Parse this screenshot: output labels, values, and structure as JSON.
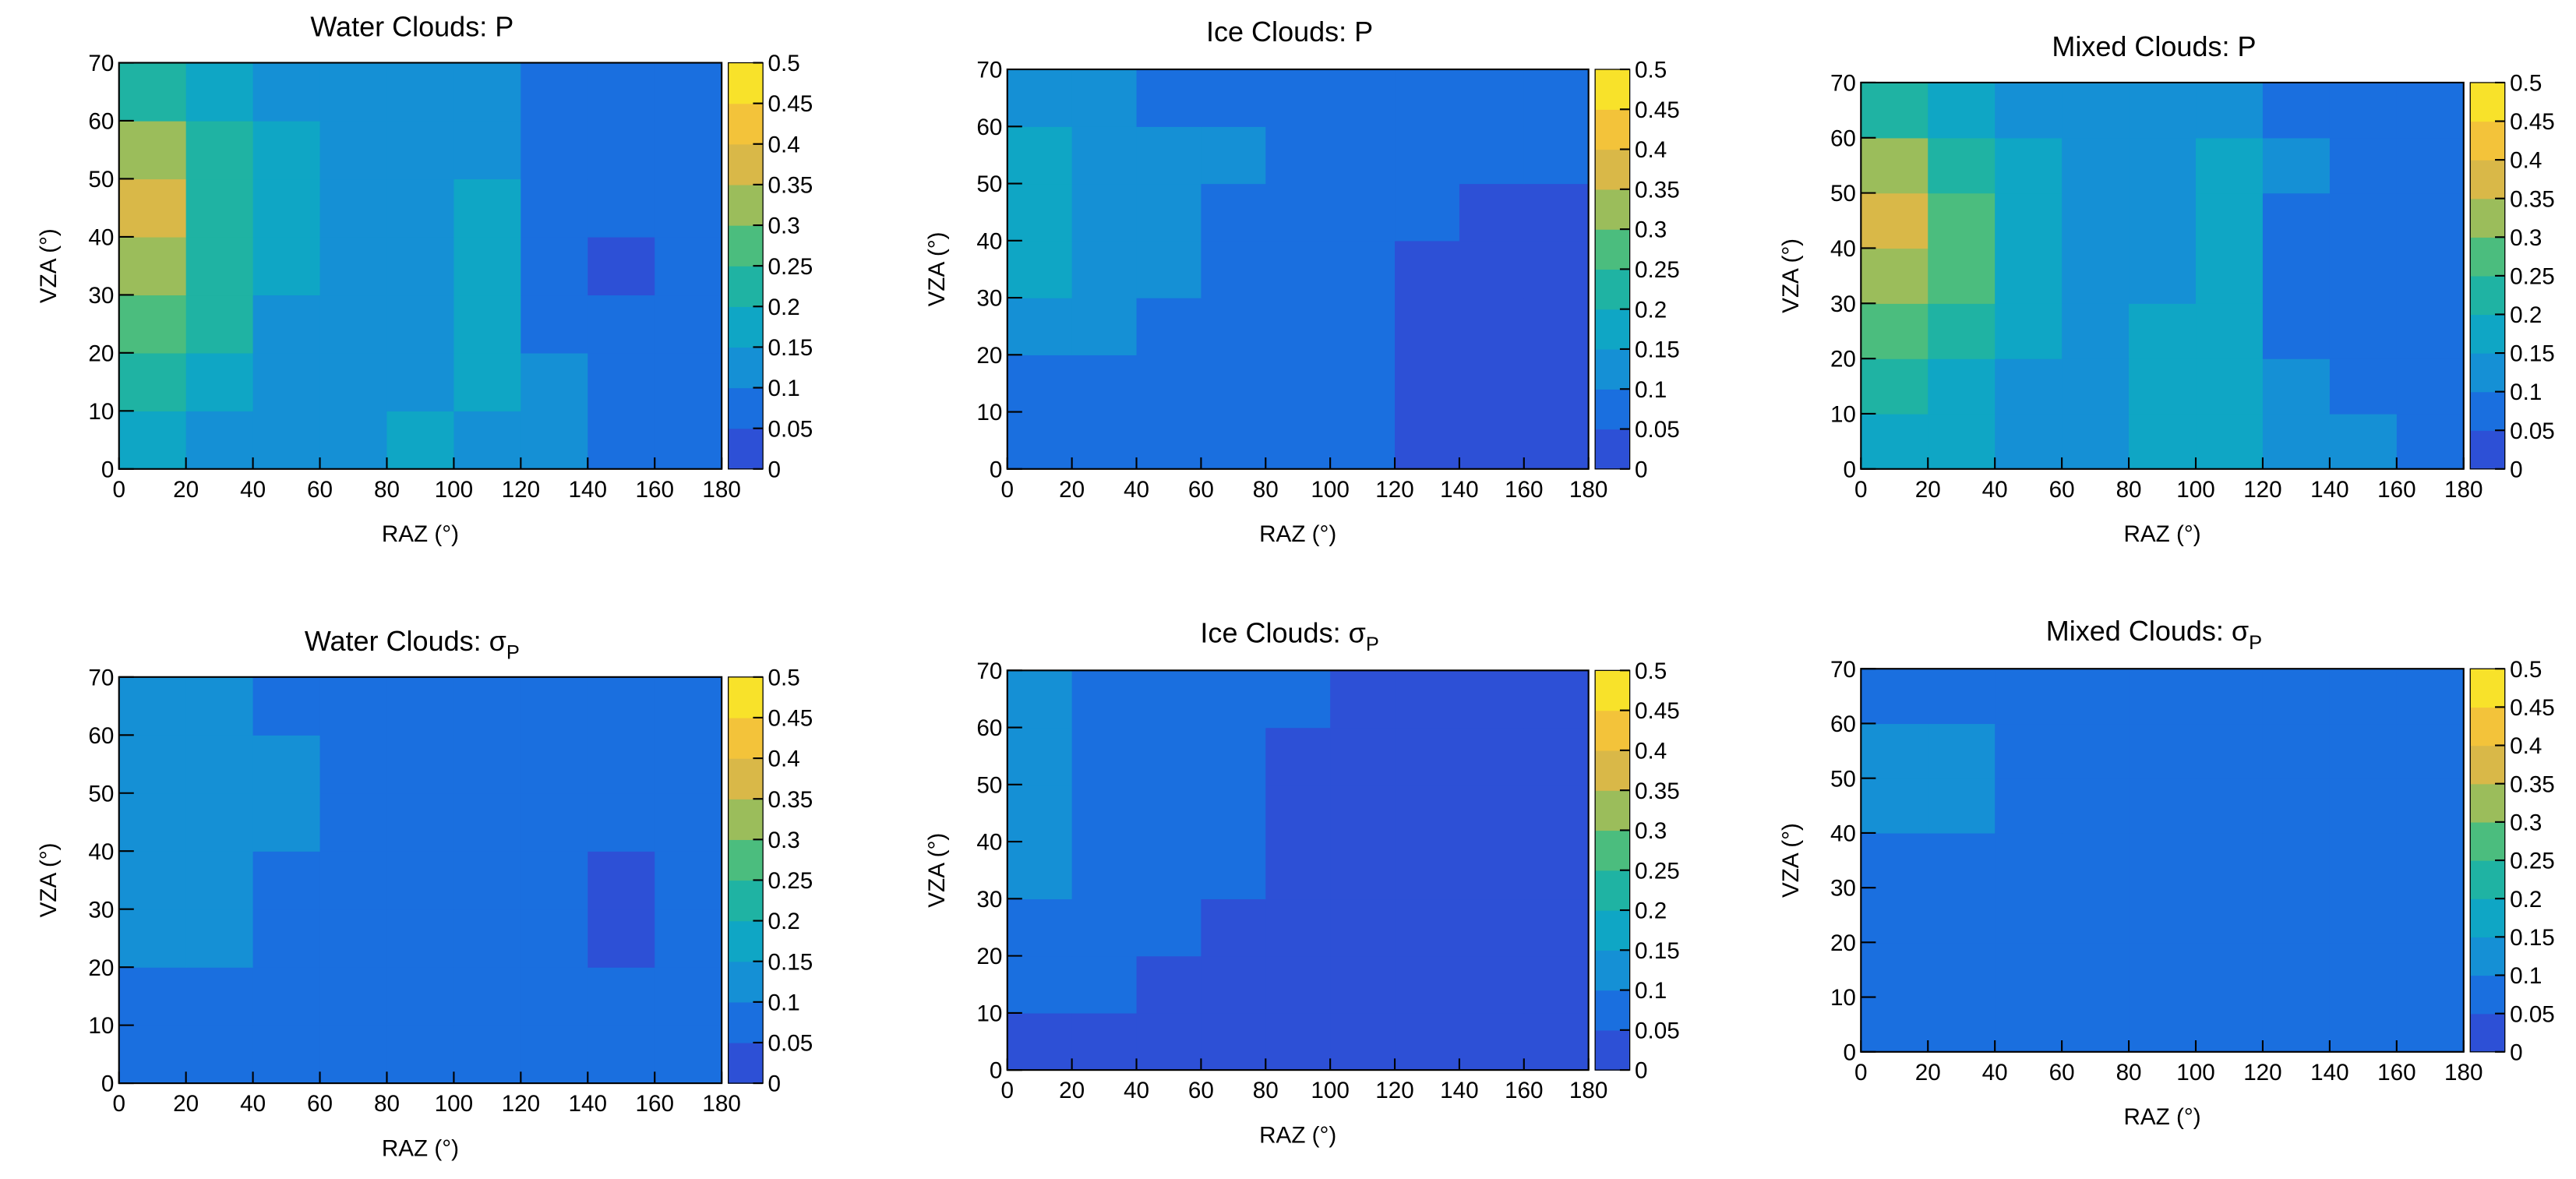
{
  "chart_data": [
    {
      "type": "heatmap",
      "title": "Water Clouds: P",
      "xlabel": "RAZ (°)",
      "ylabel": "VZA (°)",
      "xbins": [
        0,
        20,
        40,
        60,
        80,
        100,
        120,
        140,
        160,
        180
      ],
      "ybins": [
        0,
        10,
        20,
        30,
        40,
        50,
        60,
        70
      ],
      "values": [
        [
          0.15,
          0.13,
          0.13,
          0.13,
          0.15,
          0.14,
          0.12,
          0.08,
          0.08
        ],
        [
          0.2,
          0.16,
          0.13,
          0.12,
          0.14,
          0.15,
          0.1,
          0.06,
          0.07
        ],
        [
          0.27,
          0.2,
          0.14,
          0.12,
          0.14,
          0.16,
          0.07,
          0.05,
          0.06
        ],
        [
          0.33,
          0.23,
          0.15,
          0.12,
          0.13,
          0.16,
          0.06,
          0.04,
          0.06
        ],
        [
          0.36,
          0.24,
          0.16,
          0.12,
          0.12,
          0.16,
          0.07,
          0.05,
          0.07
        ],
        [
          0.3,
          0.2,
          0.15,
          0.12,
          0.11,
          0.14,
          0.09,
          0.08,
          0.08
        ],
        [
          0.2,
          0.15,
          0.13,
          0.11,
          0.1,
          0.1,
          0.09,
          0.08,
          0.08
        ]
      ],
      "xlim": [
        0,
        180
      ],
      "ylim": [
        0,
        70
      ],
      "xticks": [
        0,
        20,
        40,
        60,
        80,
        100,
        120,
        140,
        160,
        180
      ],
      "yticks": [
        0,
        10,
        20,
        30,
        40,
        50,
        60,
        70
      ],
      "colorbar_lim": [
        0,
        0.5
      ],
      "colorbar_ticks": [
        0,
        0.05,
        0.1,
        0.15,
        0.2,
        0.25,
        0.3,
        0.35,
        0.4,
        0.45,
        0.5
      ],
      "colormap": [
        "#2d50d6",
        "#1a6fdf",
        "#1590d5",
        "#0fa6c5",
        "#1fb3a3",
        "#4bbd7e",
        "#9bbd5b",
        "#d9b848",
        "#f3c33a",
        "#f8e22a"
      ]
    },
    {
      "type": "heatmap",
      "title": "Ice Clouds: P",
      "xlabel": "RAZ (°)",
      "ylabel": "VZA (°)",
      "xbins": [
        0,
        20,
        40,
        60,
        80,
        100,
        120,
        140,
        160,
        180
      ],
      "ybins": [
        0,
        10,
        20,
        30,
        40,
        50,
        60,
        70
      ],
      "values": [
        [
          0.08,
          0.08,
          0.08,
          0.08,
          0.08,
          0.07,
          0.04,
          0.04,
          0.04
        ],
        [
          0.09,
          0.08,
          0.08,
          0.08,
          0.08,
          0.06,
          0.04,
          0.04,
          0.04
        ],
        [
          0.12,
          0.11,
          0.09,
          0.08,
          0.08,
          0.05,
          0.04,
          0.04,
          0.04
        ],
        [
          0.15,
          0.13,
          0.11,
          0.09,
          0.08,
          0.06,
          0.04,
          0.04,
          0.04
        ],
        [
          0.16,
          0.14,
          0.12,
          0.09,
          0.08,
          0.07,
          0.05,
          0.04,
          0.04
        ],
        [
          0.16,
          0.14,
          0.12,
          0.1,
          0.08,
          0.07,
          0.06,
          0.05,
          0.05
        ],
        [
          0.12,
          0.11,
          0.09,
          0.08,
          0.08,
          0.07,
          0.06,
          0.05,
          0.05
        ]
      ],
      "xlim": [
        0,
        180
      ],
      "ylim": [
        0,
        70
      ],
      "xticks": [
        0,
        20,
        40,
        60,
        80,
        100,
        120,
        140,
        160,
        180
      ],
      "yticks": [
        0,
        10,
        20,
        30,
        40,
        50,
        60,
        70
      ],
      "colorbar_lim": [
        0,
        0.5
      ],
      "colorbar_ticks": [
        0,
        0.05,
        0.1,
        0.15,
        0.2,
        0.25,
        0.3,
        0.35,
        0.4,
        0.45,
        0.5
      ],
      "colormap": [
        "#2d50d6",
        "#1a6fdf",
        "#1590d5",
        "#0fa6c5",
        "#1fb3a3",
        "#4bbd7e",
        "#9bbd5b",
        "#d9b848",
        "#f3c33a",
        "#f8e22a"
      ]
    },
    {
      "type": "heatmap",
      "title": "Mixed Clouds: P",
      "xlabel": "RAZ (°)",
      "ylabel": "VZA (°)",
      "xbins": [
        0,
        20,
        40,
        60,
        80,
        100,
        120,
        140,
        160,
        180
      ],
      "ybins": [
        0,
        10,
        20,
        30,
        40,
        50,
        60,
        70
      ],
      "values": [
        [
          0.17,
          0.15,
          0.14,
          0.14,
          0.16,
          0.15,
          0.12,
          0.1,
          0.09
        ],
        [
          0.22,
          0.17,
          0.14,
          0.13,
          0.17,
          0.15,
          0.1,
          0.07,
          0.08
        ],
        [
          0.28,
          0.21,
          0.15,
          0.13,
          0.16,
          0.17,
          0.08,
          0.06,
          0.07
        ],
        [
          0.34,
          0.25,
          0.16,
          0.13,
          0.14,
          0.17,
          0.07,
          0.05,
          0.07
        ],
        [
          0.38,
          0.27,
          0.17,
          0.13,
          0.13,
          0.17,
          0.08,
          0.06,
          0.08
        ],
        [
          0.32,
          0.22,
          0.15,
          0.12,
          0.12,
          0.15,
          0.1,
          0.08,
          0.09
        ],
        [
          0.2,
          0.16,
          0.13,
          0.11,
          0.1,
          0.1,
          0.09,
          0.08,
          0.09
        ]
      ],
      "xlim": [
        0,
        180
      ],
      "ylim": [
        0,
        70
      ],
      "xticks": [
        0,
        20,
        40,
        60,
        80,
        100,
        120,
        140,
        160,
        180
      ],
      "yticks": [
        0,
        10,
        20,
        30,
        40,
        50,
        60,
        70
      ],
      "colorbar_lim": [
        0,
        0.5
      ],
      "colorbar_ticks": [
        0,
        0.05,
        0.1,
        0.15,
        0.2,
        0.25,
        0.3,
        0.35,
        0.4,
        0.45,
        0.5
      ],
      "colormap": [
        "#2d50d6",
        "#1a6fdf",
        "#1590d5",
        "#0fa6c5",
        "#1fb3a3",
        "#4bbd7e",
        "#9bbd5b",
        "#d9b848",
        "#f3c33a",
        "#f8e22a"
      ]
    },
    {
      "type": "heatmap",
      "title": "Water Clouds: σ",
      "title_subscript": "P",
      "xlabel": "RAZ (°)",
      "ylabel": "VZA (°)",
      "xbins": [
        0,
        20,
        40,
        60,
        80,
        100,
        120,
        140,
        160,
        180
      ],
      "ybins": [
        0,
        10,
        20,
        30,
        40,
        50,
        60,
        70
      ],
      "values": [
        [
          0.08,
          0.08,
          0.08,
          0.08,
          0.08,
          0.08,
          0.07,
          0.06,
          0.06
        ],
        [
          0.09,
          0.08,
          0.08,
          0.08,
          0.08,
          0.08,
          0.06,
          0.05,
          0.05
        ],
        [
          0.11,
          0.1,
          0.09,
          0.08,
          0.07,
          0.08,
          0.06,
          0.04,
          0.05
        ],
        [
          0.12,
          0.11,
          0.09,
          0.08,
          0.06,
          0.08,
          0.06,
          0.04,
          0.05
        ],
        [
          0.13,
          0.12,
          0.1,
          0.08,
          0.07,
          0.08,
          0.07,
          0.05,
          0.06
        ],
        [
          0.13,
          0.12,
          0.1,
          0.09,
          0.08,
          0.08,
          0.08,
          0.06,
          0.07
        ],
        [
          0.12,
          0.11,
          0.09,
          0.08,
          0.08,
          0.08,
          0.08,
          0.07,
          0.07
        ]
      ],
      "xlim": [
        0,
        180
      ],
      "ylim": [
        0,
        70
      ],
      "xticks": [
        0,
        20,
        40,
        60,
        80,
        100,
        120,
        140,
        160,
        180
      ],
      "yticks": [
        0,
        10,
        20,
        30,
        40,
        50,
        60,
        70
      ],
      "colorbar_lim": [
        0,
        0.5
      ],
      "colorbar_ticks": [
        0,
        0.05,
        0.1,
        0.15,
        0.2,
        0.25,
        0.3,
        0.35,
        0.4,
        0.45,
        0.5
      ],
      "colormap": [
        "#2d50d6",
        "#1a6fdf",
        "#1590d5",
        "#0fa6c5",
        "#1fb3a3",
        "#4bbd7e",
        "#9bbd5b",
        "#d9b848",
        "#f3c33a",
        "#f8e22a"
      ]
    },
    {
      "type": "heatmap",
      "title": "Ice Clouds: σ",
      "title_subscript": "P",
      "xlabel": "RAZ (°)",
      "ylabel": "VZA (°)",
      "xbins": [
        0,
        20,
        40,
        60,
        80,
        100,
        120,
        140,
        160,
        180
      ],
      "ybins": [
        0,
        10,
        20,
        30,
        40,
        50,
        60,
        70
      ],
      "values": [
        [
          0.04,
          0.04,
          0.04,
          0.04,
          0.04,
          0.04,
          0.04,
          0.04,
          0.04
        ],
        [
          0.06,
          0.05,
          0.04,
          0.04,
          0.04,
          0.04,
          0.04,
          0.04,
          0.04
        ],
        [
          0.08,
          0.07,
          0.06,
          0.04,
          0.04,
          0.04,
          0.04,
          0.04,
          0.04
        ],
        [
          0.1,
          0.08,
          0.07,
          0.05,
          0.04,
          0.04,
          0.04,
          0.04,
          0.04
        ],
        [
          0.13,
          0.09,
          0.08,
          0.05,
          0.04,
          0.04,
          0.04,
          0.04,
          0.04
        ],
        [
          0.12,
          0.09,
          0.08,
          0.06,
          0.04,
          0.04,
          0.04,
          0.04,
          0.04
        ],
        [
          0.1,
          0.08,
          0.07,
          0.06,
          0.05,
          0.04,
          0.04,
          0.04,
          0.04
        ]
      ],
      "xlim": [
        0,
        180
      ],
      "ylim": [
        0,
        70
      ],
      "xticks": [
        0,
        20,
        40,
        60,
        80,
        100,
        120,
        140,
        160,
        180
      ],
      "yticks": [
        0,
        10,
        20,
        30,
        40,
        50,
        60,
        70
      ],
      "colorbar_lim": [
        0,
        0.5
      ],
      "colorbar_ticks": [
        0,
        0.05,
        0.1,
        0.15,
        0.2,
        0.25,
        0.3,
        0.35,
        0.4,
        0.45,
        0.5
      ],
      "colormap": [
        "#2d50d6",
        "#1a6fdf",
        "#1590d5",
        "#0fa6c5",
        "#1fb3a3",
        "#4bbd7e",
        "#9bbd5b",
        "#d9b848",
        "#f3c33a",
        "#f8e22a"
      ]
    },
    {
      "type": "heatmap",
      "title": "Mixed Clouds: σ",
      "title_subscript": "P",
      "xlabel": "RAZ (°)",
      "ylabel": "VZA (°)",
      "xbins": [
        0,
        20,
        40,
        60,
        80,
        100,
        120,
        140,
        160,
        180
      ],
      "ybins": [
        0,
        10,
        20,
        30,
        40,
        50,
        60,
        70
      ],
      "values": [
        [
          0.08,
          0.08,
          0.08,
          0.08,
          0.08,
          0.08,
          0.07,
          0.07,
          0.07
        ],
        [
          0.06,
          0.07,
          0.08,
          0.08,
          0.08,
          0.08,
          0.07,
          0.06,
          0.06
        ],
        [
          0.08,
          0.08,
          0.08,
          0.07,
          0.07,
          0.08,
          0.07,
          0.05,
          0.06
        ],
        [
          0.09,
          0.09,
          0.08,
          0.07,
          0.06,
          0.08,
          0.07,
          0.05,
          0.06
        ],
        [
          0.1,
          0.1,
          0.09,
          0.07,
          0.06,
          0.07,
          0.08,
          0.06,
          0.07
        ],
        [
          0.1,
          0.1,
          0.09,
          0.08,
          0.07,
          0.07,
          0.08,
          0.07,
          0.07
        ],
        [
          0.09,
          0.09,
          0.08,
          0.08,
          0.07,
          0.07,
          0.08,
          0.07,
          0.08
        ]
      ],
      "xlim": [
        0,
        180
      ],
      "ylim": [
        0,
        70
      ],
      "xticks": [
        0,
        20,
        40,
        60,
        80,
        100,
        120,
        140,
        160,
        180
      ],
      "yticks": [
        0,
        10,
        20,
        30,
        40,
        50,
        60,
        70
      ],
      "colorbar_lim": [
        0,
        0.5
      ],
      "colorbar_ticks": [
        0,
        0.05,
        0.1,
        0.15,
        0.2,
        0.25,
        0.3,
        0.35,
        0.4,
        0.45,
        0.5
      ],
      "colormap": [
        "#2d50d6",
        "#1a6fdf",
        "#1590d5",
        "#0fa6c5",
        "#1fb3a3",
        "#4bbd7e",
        "#9bbd5b",
        "#d9b848",
        "#f3c33a",
        "#f8e22a"
      ]
    }
  ]
}
